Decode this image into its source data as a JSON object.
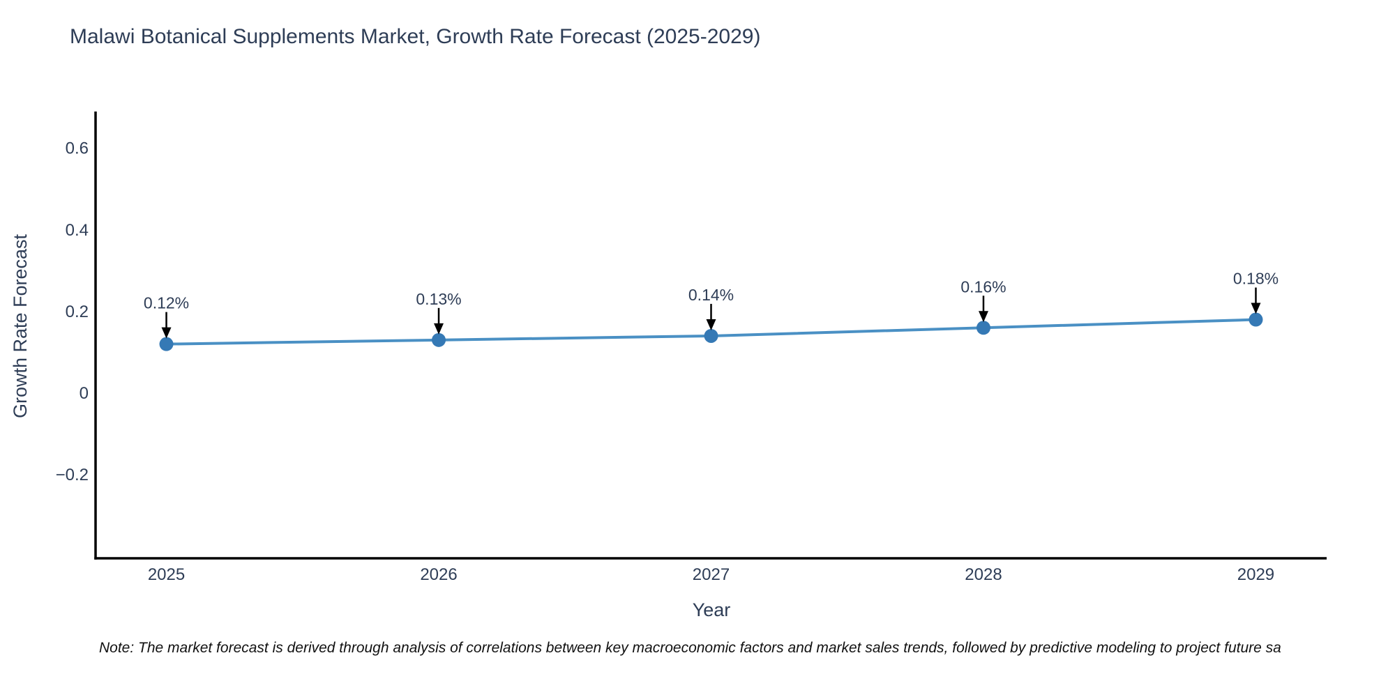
{
  "chart_data": {
    "type": "line",
    "title": "Malawi Botanical Supplements Market, Growth Rate Forecast (2025-2029)",
    "x": [
      2025,
      2026,
      2027,
      2028,
      2029
    ],
    "series": [
      {
        "name": "Growth Rate Forecast",
        "values": [
          0.12,
          0.13,
          0.14,
          0.16,
          0.18
        ]
      }
    ],
    "point_labels": [
      "0.12%",
      "0.13%",
      "0.14%",
      "0.16%",
      "0.18%"
    ],
    "xlabel": "Year",
    "ylabel": "Growth Rate Forecast",
    "xtick_labels": [
      "2025",
      "2026",
      "2027",
      "2028",
      "2029"
    ],
    "ytick_values": [
      0.6,
      0.4,
      0.2,
      0,
      -0.2
    ],
    "ytick_labels": [
      "0.6",
      "0.4",
      "0.2",
      "0",
      "−0.2"
    ],
    "xlim": [
      2024.74,
      2029.26
    ],
    "ylim": [
      -0.405,
      0.69
    ],
    "grid": false,
    "legend": "none",
    "colors": {
      "line": "#4a90c4",
      "marker": "#3579b5",
      "text": "#2e3d56",
      "spine": "#000000",
      "annotation_arrow": "#000000"
    }
  },
  "footnote": {
    "text": "Note: The market forecast is derived through analysis of correlations between key macroeconomic factors and market sales trends, followed by predictive modeling to project future sa"
  }
}
